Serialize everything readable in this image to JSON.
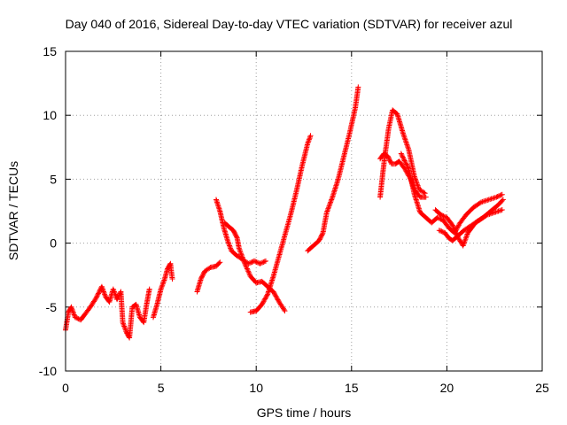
{
  "chart_data": {
    "type": "scatter",
    "title": "Day 040 of 2016, Sidereal Day-to-day VTEC variation (SDTVAR) for receiver azul",
    "xlabel": "GPS time / hours",
    "ylabel": "SDTVAR / TECUs",
    "xlim": [
      0,
      25
    ],
    "ylim": [
      -10,
      15
    ],
    "xticks": [
      "0",
      "5",
      "10",
      "15",
      "20",
      "25"
    ],
    "yticks": [
      "-10",
      "-5",
      "0",
      "5",
      "10",
      "15"
    ],
    "grid": true,
    "marker": "+",
    "series": [
      {
        "name": "SDTVAR",
        "color": "#ff0000",
        "segments": [
          [
            [
              0.0,
              -6.8
            ],
            [
              0.15,
              -5.4
            ],
            [
              0.3,
              -5.0
            ],
            [
              0.5,
              -5.8
            ],
            [
              0.8,
              -6.0
            ],
            [
              1.0,
              -5.6
            ],
            [
              1.3,
              -5.0
            ],
            [
              1.6,
              -4.3
            ],
            [
              1.9,
              -3.4
            ],
            [
              2.1,
              -4.2
            ],
            [
              2.3,
              -4.6
            ],
            [
              2.5,
              -3.6
            ],
            [
              2.7,
              -4.4
            ],
            [
              2.9,
              -3.8
            ],
            [
              3.0,
              -6.2
            ],
            [
              3.2,
              -7.0
            ],
            [
              3.35,
              -7.4
            ],
            [
              3.5,
              -5.0
            ],
            [
              3.7,
              -4.8
            ],
            [
              3.9,
              -5.8
            ],
            [
              4.1,
              -6.2
            ],
            [
              4.25,
              -4.8
            ],
            [
              4.4,
              -3.6
            ]
          ],
          [
            [
              4.6,
              -5.8
            ],
            [
              4.8,
              -4.8
            ],
            [
              5.0,
              -3.6
            ],
            [
              5.2,
              -2.8
            ],
            [
              5.35,
              -2.0
            ],
            [
              5.5,
              -1.6
            ],
            [
              5.6,
              -2.8
            ]
          ],
          [
            [
              6.9,
              -3.8
            ],
            [
              7.1,
              -2.8
            ],
            [
              7.3,
              -2.2
            ],
            [
              7.6,
              -1.9
            ],
            [
              7.9,
              -1.8
            ],
            [
              8.1,
              -1.5
            ]
          ],
          [
            [
              7.9,
              3.4
            ],
            [
              8.1,
              2.5
            ],
            [
              8.3,
              1.2
            ],
            [
              8.5,
              0.2
            ],
            [
              8.7,
              -0.6
            ],
            [
              9.0,
              -1.0
            ],
            [
              9.3,
              -1.3
            ],
            [
              9.6,
              -1.6
            ],
            [
              9.9,
              -1.4
            ],
            [
              10.2,
              -1.6
            ],
            [
              10.5,
              -1.4
            ]
          ],
          [
            [
              8.35,
              1.6
            ],
            [
              8.55,
              1.3
            ],
            [
              8.8,
              1.0
            ],
            [
              9.0,
              0.4
            ],
            [
              9.1,
              -0.4
            ],
            [
              9.4,
              -1.6
            ],
            [
              9.7,
              -2.6
            ],
            [
              10.0,
              -3.1
            ],
            [
              10.3,
              -3.0
            ],
            [
              10.6,
              -3.4
            ],
            [
              10.9,
              -3.8
            ],
            [
              11.2,
              -4.6
            ],
            [
              11.5,
              -5.3
            ]
          ],
          [
            [
              9.7,
              -5.4
            ],
            [
              10.0,
              -5.3
            ],
            [
              10.3,
              -4.8
            ],
            [
              10.6,
              -4.0
            ],
            [
              10.9,
              -2.6
            ],
            [
              11.2,
              -1.0
            ],
            [
              11.5,
              0.6
            ],
            [
              11.8,
              2.2
            ],
            [
              12.1,
              4.0
            ],
            [
              12.4,
              6.0
            ],
            [
              12.7,
              7.8
            ],
            [
              12.85,
              8.4
            ]
          ],
          [
            [
              12.7,
              -0.6
            ],
            [
              13.0,
              -0.2
            ],
            [
              13.3,
              0.2
            ],
            [
              13.5,
              0.8
            ],
            [
              13.7,
              2.4
            ],
            [
              14.0,
              3.6
            ],
            [
              14.3,
              5.0
            ],
            [
              14.6,
              6.8
            ],
            [
              14.9,
              8.6
            ],
            [
              15.2,
              10.6
            ],
            [
              15.35,
              12.2
            ]
          ],
          [
            [
              16.5,
              6.6
            ],
            [
              16.7,
              7.0
            ],
            [
              16.9,
              6.8
            ],
            [
              17.1,
              6.2
            ],
            [
              17.3,
              6.2
            ],
            [
              17.5,
              6.4
            ],
            [
              17.8,
              5.8
            ],
            [
              18.1,
              5.0
            ],
            [
              18.3,
              4.2
            ],
            [
              18.6,
              3.6
            ],
            [
              18.9,
              3.6
            ]
          ],
          [
            [
              16.5,
              3.6
            ],
            [
              16.65,
              5.6
            ],
            [
              16.8,
              7.4
            ],
            [
              16.95,
              9.0
            ],
            [
              17.15,
              10.4
            ],
            [
              17.4,
              10.1
            ],
            [
              17.7,
              8.6
            ],
            [
              18.0,
              7.3
            ],
            [
              18.3,
              5.2
            ],
            [
              18.55,
              4.2
            ],
            [
              18.85,
              3.9
            ]
          ],
          [
            [
              17.6,
              7.0
            ],
            [
              18.0,
              5.8
            ],
            [
              18.3,
              3.8
            ],
            [
              18.6,
              2.4
            ],
            [
              18.9,
              2.0
            ],
            [
              19.2,
              1.6
            ],
            [
              19.5,
              2.0
            ],
            [
              19.8,
              1.8
            ],
            [
              20.1,
              1.2
            ],
            [
              20.4,
              0.8
            ],
            [
              20.7,
              1.6
            ],
            [
              21.0,
              2.2
            ],
            [
              21.4,
              2.8
            ],
            [
              21.8,
              3.2
            ],
            [
              22.2,
              3.4
            ],
            [
              22.6,
              3.6
            ],
            [
              22.9,
              3.8
            ]
          ],
          [
            [
              19.6,
              1.0
            ],
            [
              19.9,
              0.8
            ],
            [
              20.1,
              0.4
            ],
            [
              20.3,
              0.2
            ],
            [
              20.6,
              0.6
            ],
            [
              20.9,
              1.0
            ],
            [
              21.3,
              1.4
            ],
            [
              21.7,
              1.8
            ],
            [
              22.1,
              2.2
            ],
            [
              22.5,
              2.4
            ],
            [
              22.9,
              2.6
            ]
          ],
          [
            [
              19.4,
              2.6
            ],
            [
              19.7,
              2.2
            ],
            [
              20.0,
              2.0
            ],
            [
              20.3,
              1.4
            ],
            [
              20.6,
              0.4
            ],
            [
              20.85,
              -0.2
            ],
            [
              21.1,
              0.8
            ],
            [
              21.5,
              1.6
            ],
            [
              21.9,
              2.0
            ],
            [
              22.3,
              2.5
            ],
            [
              22.7,
              3.0
            ],
            [
              22.95,
              3.4
            ]
          ]
        ]
      }
    ]
  }
}
